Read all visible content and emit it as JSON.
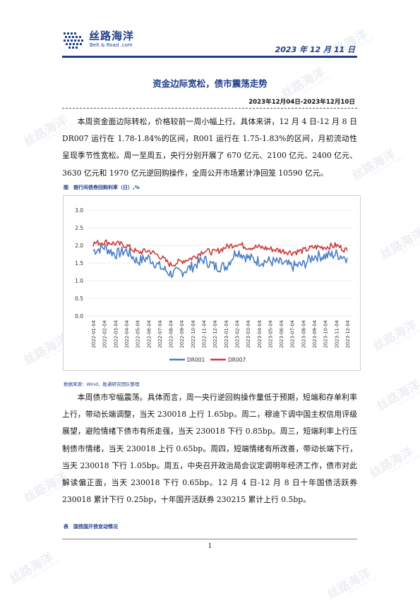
{
  "header": {
    "logo_cn": "丝路海洋",
    "logo_en": "Belt & Road .com",
    "date": "2023 年 12 月 11 日"
  },
  "title": "资金边际宽松，债市震荡走势",
  "period": "2023年12月04日-2023年12月10日",
  "paragraphs": {
    "p1": "本周资金面边际转松，价格较前一周小幅上行。具体来讲，12 月 4 日-12 月 8 日 DR007 运行在 1.78-1.84%的区间，R001 运行在 1.75-1.83%的区间，月初流动性呈现季节性宽松。周一至周五，央行分别开展了 670 亿元、2100 亿元、2400 亿元、3630 亿元和 1970 亿元逆回购操作，全周公开市场累计净回笼 10590 亿元。",
    "p2": "本周债市窄幅震荡。具体而言，周一央行逆回购操作量低于预期，短端和存单利率上行，带动长端调整，当天 230018 上行 1.65bp。周二，穆迪下调中国主权信用评级展望，避险情绪下债市有所走强，当天 230018 下行 0.85bp。周三，短端利率上行压制债市情绪，当天 230018 上行 0.65bp。周四，短端情绪有所改善，带动长端下行，当天 230018 下行 1.05bp。周五，中央召开政治局会议定调明年经济工作，债市对此解读偏正面，当天 230018 下行 0.65bp。12 月 4 日-12 月 8 日十年国债活跃券 230018 累计下行 0.25bp，十年国开活跃券 230215 累计上行 0.5bp。"
  },
  "figure_caption": "图　银行间债券回购利率（日）,%",
  "source": "数据来源：Wind、胜通研究团队整理",
  "table_caption": "表　国债国开债变动情况",
  "page_number": "1",
  "watermark": {
    "cn": "丝路海洋",
    "en": "Belt & Road Origin"
  },
  "colors": {
    "brand": "#1f3e8a",
    "dr001": "#4a7ec6",
    "dr007": "#cc3b3b"
  },
  "chart_data": {
    "type": "line",
    "title": "",
    "xlabel": "",
    "ylabel": "",
    "ylim": [
      0,
      3.0
    ],
    "yticks": [
      "0.0",
      "0.5",
      "1.0",
      "1.5",
      "2.0",
      "2.5",
      "3.0"
    ],
    "grid": "horizontal",
    "legend": "bottom",
    "x": [
      "2022-01-04",
      "2022-02-04",
      "2022-03-04",
      "2022-04-04",
      "2022-05-04",
      "2022-06-04",
      "2022-07-04",
      "2022-08-04",
      "2022-09-04",
      "2022-10-04",
      "2022-11-04",
      "2022-12-04",
      "2023-01-04",
      "2023-02-04",
      "2023-03-04",
      "2023-04-04",
      "2023-05-04",
      "2023-06-04",
      "2023-07-04",
      "2023-08-04",
      "2023-09-04",
      "2023-10-04",
      "2023-11-04",
      "2023-12-04"
    ],
    "series": [
      {
        "name": "DR001",
        "values": [
          1.85,
          1.95,
          1.75,
          1.85,
          1.55,
          1.65,
          1.4,
          1.2,
          1.25,
          1.4,
          1.6,
          1.4,
          1.4,
          1.85,
          1.65,
          1.55,
          1.55,
          1.5,
          1.4,
          1.45,
          1.7,
          1.7,
          1.75,
          1.65
        ]
      },
      {
        "name": "DR007",
        "values": [
          2.05,
          2.1,
          2.05,
          2.0,
          1.8,
          1.85,
          1.7,
          1.45,
          1.55,
          1.65,
          1.85,
          1.8,
          1.95,
          2.05,
          1.95,
          1.95,
          1.9,
          1.85,
          1.8,
          1.85,
          1.95,
          1.95,
          2.0,
          1.85
        ]
      }
    ]
  }
}
